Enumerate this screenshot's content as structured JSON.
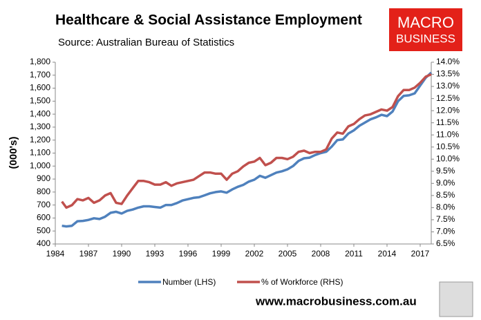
{
  "chart_data": {
    "type": "line",
    "title": "Healthcare & Social Assistance Employment",
    "subtitle": "Source: Australian Bureau of Statistics",
    "y_label": "(000's)",
    "logo": [
      "MACRO",
      "BUSINESS"
    ],
    "footer": "www.macrobusiness.com.au",
    "x": [
      1984.6,
      1985,
      1985.5,
      1986,
      1986.5,
      1987,
      1987.5,
      1988,
      1988.5,
      1989,
      1989.5,
      1990,
      1990.5,
      1991,
      1991.5,
      1992,
      1992.5,
      1993,
      1993.5,
      1994,
      1994.5,
      1995,
      1995.5,
      1996,
      1996.5,
      1997,
      1997.5,
      1998,
      1998.5,
      1999,
      1999.5,
      2000,
      2000.5,
      2001,
      2001.5,
      2002,
      2002.5,
      2003,
      2003.5,
      2004,
      2004.5,
      2005,
      2005.5,
      2006,
      2006.5,
      2007,
      2007.5,
      2008,
      2008.5,
      2009,
      2009.5,
      2010,
      2010.5,
      2011,
      2011.5,
      2012,
      2012.5,
      2013,
      2013.5,
      2014,
      2014.5,
      2015,
      2015.5,
      2016,
      2016.5,
      2017,
      2017.5,
      2018
    ],
    "series": [
      {
        "name": "Number (LHS)",
        "color": "#4f81bd",
        "values": [
          540,
          535,
          540,
          575,
          578,
          585,
          598,
          592,
          610,
          640,
          648,
          635,
          655,
          665,
          680,
          690,
          690,
          685,
          680,
          700,
          700,
          715,
          735,
          745,
          755,
          760,
          775,
          790,
          800,
          805,
          795,
          820,
          840,
          855,
          880,
          895,
          925,
          910,
          930,
          950,
          960,
          975,
          1000,
          1040,
          1060,
          1065,
          1085,
          1100,
          1110,
          1150,
          1200,
          1205,
          1250,
          1275,
          1310,
          1335,
          1360,
          1375,
          1395,
          1385,
          1420,
          1500,
          1540,
          1545,
          1560,
          1620,
          1680,
          1720
        ]
      },
      {
        "name": "% of Workforce (RHS)",
        "color": "#c0504d",
        "axis": "y2",
        "values": [
          8.25,
          8.0,
          8.1,
          8.35,
          8.3,
          8.4,
          8.2,
          8.3,
          8.5,
          8.6,
          8.2,
          8.15,
          8.5,
          8.8,
          9.1,
          9.1,
          9.05,
          8.95,
          8.95,
          9.05,
          8.9,
          9.0,
          9.05,
          9.1,
          9.15,
          9.3,
          9.45,
          9.45,
          9.4,
          9.4,
          9.15,
          9.4,
          9.5,
          9.7,
          9.85,
          9.9,
          10.05,
          9.75,
          9.85,
          10.05,
          10.05,
          10.0,
          10.1,
          10.3,
          10.35,
          10.25,
          10.3,
          10.3,
          10.4,
          10.85,
          11.1,
          11.05,
          11.35,
          11.45,
          11.65,
          11.8,
          11.85,
          11.95,
          12.05,
          12.0,
          12.15,
          12.6,
          12.85,
          12.85,
          12.95,
          13.15,
          13.4,
          13.5
        ]
      }
    ],
    "xlim": [
      1984,
      2018
    ],
    "xticks": [
      1984,
      1987,
      1990,
      1993,
      1996,
      1999,
      2002,
      2005,
      2008,
      2011,
      2014,
      2017
    ],
    "ylim": [
      400,
      1800
    ],
    "yticks": [
      400,
      500,
      600,
      700,
      800,
      900,
      {
        "value": 1000,
        "label": "1,000"
      },
      {
        "value": 1100,
        "label": "1,100"
      },
      {
        "value": 1200,
        "label": "1,200"
      },
      {
        "value": 1300,
        "label": "1,300"
      },
      {
        "value": 1400,
        "label": "1,400"
      },
      {
        "value": 1500,
        "label": "1,500"
      },
      {
        "value": 1600,
        "label": "1,600"
      },
      {
        "value": 1700,
        "label": "1,700"
      },
      {
        "value": 1800,
        "label": "1,800"
      }
    ],
    "y2lim": [
      6.5,
      14.0
    ],
    "y2ticks": [
      {
        "value": 6.5,
        "label": "6.5%"
      },
      {
        "value": 7.0,
        "label": "7.0%"
      },
      {
        "value": 7.5,
        "label": "7.5%"
      },
      {
        "value": 8.0,
        "label": "8.0%"
      },
      {
        "value": 8.5,
        "label": "8.5%"
      },
      {
        "value": 9.0,
        "label": "9.0%"
      },
      {
        "value": 9.5,
        "label": "9.5%"
      },
      {
        "value": 10.0,
        "label": "10.0%"
      },
      {
        "value": 10.5,
        "label": "10.5%"
      },
      {
        "value": 11.0,
        "label": "11.0%"
      },
      {
        "value": 11.5,
        "label": "11.5%"
      },
      {
        "value": 12.0,
        "label": "12.0%"
      },
      {
        "value": 12.5,
        "label": "12.5%"
      },
      {
        "value": 13.0,
        "label": "13.0%"
      },
      {
        "value": 13.5,
        "label": "13.5%"
      },
      {
        "value": 14.0,
        "label": "14.0%"
      }
    ],
    "grid": false,
    "legend": "bottom"
  }
}
